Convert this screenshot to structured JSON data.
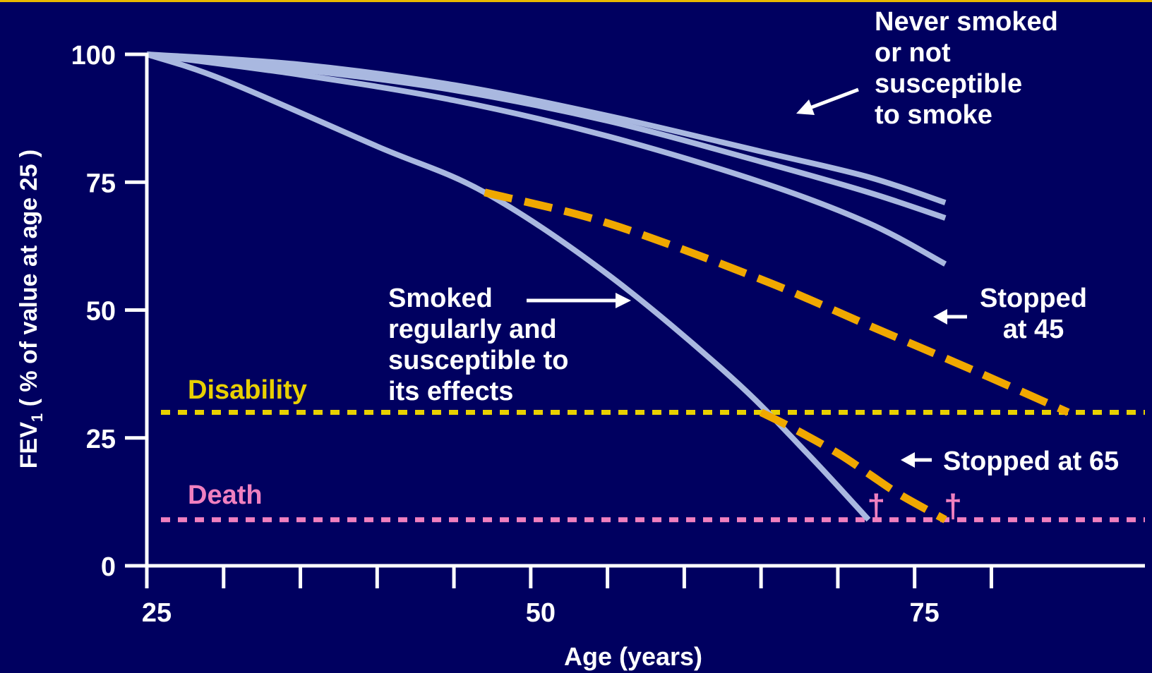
{
  "chart_data": {
    "type": "line",
    "title": "",
    "xlabel": "Age (years)",
    "ylabel_main": "FEV",
    "ylabel_sub": "1",
    "ylabel_rest": " ( % of value at age 25 )",
    "xlim": [
      25,
      90
    ],
    "ylim": [
      0,
      100
    ],
    "x_tick_labels": [
      "25",
      "50",
      "75"
    ],
    "x_tick_values": [
      25,
      50,
      75
    ],
    "x_minor_ticks": [
      30,
      35,
      40,
      45,
      50,
      55,
      60,
      65,
      70,
      75,
      80
    ],
    "y_tick_labels": [
      "0",
      "25",
      "50",
      "75",
      "100"
    ],
    "y_tick_values": [
      0,
      25,
      50,
      75,
      100
    ],
    "grid": false,
    "colors": {
      "background": "#000060",
      "series_line": "#a9b8e0",
      "stopped_line": "#f0a800",
      "disability": "#e8d000",
      "death": "#f080c0",
      "axis": "#ffffff",
      "frame_border": "#e8b800"
    },
    "thresholds": [
      {
        "label": "Disability",
        "y": 30,
        "color": "#e8d000"
      },
      {
        "label": "Death",
        "y": 9,
        "color": "#f080c0"
      }
    ],
    "series": [
      {
        "style": "solid",
        "color": "#a9b8e0",
        "x": [
          25,
          35,
          45,
          55,
          65,
          72,
          77
        ],
        "y": [
          100,
          98,
          94,
          88,
          81,
          76,
          71
        ]
      },
      {
        "style": "solid",
        "color": "#a9b8e0",
        "x": [
          25,
          35,
          45,
          55,
          65,
          72,
          77
        ],
        "y": [
          100,
          97,
          93,
          87,
          79,
          73,
          68
        ]
      },
      {
        "style": "solid",
        "color": "#a9b8e0",
        "x": [
          25,
          35,
          45,
          55,
          65,
          72,
          77
        ],
        "y": [
          100,
          96,
          91,
          84,
          75,
          67,
          59
        ]
      },
      {
        "style": "solid",
        "color": "#a9b8e0",
        "x": [
          25,
          30,
          40,
          47,
          55,
          63,
          68,
          72
        ],
        "y": [
          100,
          95,
          82,
          73,
          57,
          37,
          22,
          9
        ]
      },
      {
        "style": "dashed",
        "color": "#f0a800",
        "x": [
          47,
          55,
          65,
          72,
          79,
          85
        ],
        "y": [
          73,
          67,
          56,
          47,
          38,
          30
        ]
      },
      {
        "style": "dashed",
        "color": "#f0a800",
        "x": [
          65,
          67,
          70,
          72,
          74,
          77
        ],
        "y": [
          30,
          27,
          22,
          18,
          14,
          9
        ]
      }
    ],
    "death_markers": [
      {
        "x": 72.5,
        "y": 9,
        "symbol": "†"
      },
      {
        "x": 77.5,
        "y": 9,
        "symbol": "†"
      }
    ],
    "annotations": {
      "never_smoked": [
        "Never smoked",
        "or not",
        "susceptible",
        "to smoke"
      ],
      "smoked_regularly": [
        "Smoked",
        "regularly and",
        "susceptible to",
        "its effects"
      ],
      "stopped_45": [
        "Stopped",
        "at 45"
      ],
      "stopped_65": "Stopped at 65",
      "disability": "Disability",
      "death": "Death"
    }
  }
}
